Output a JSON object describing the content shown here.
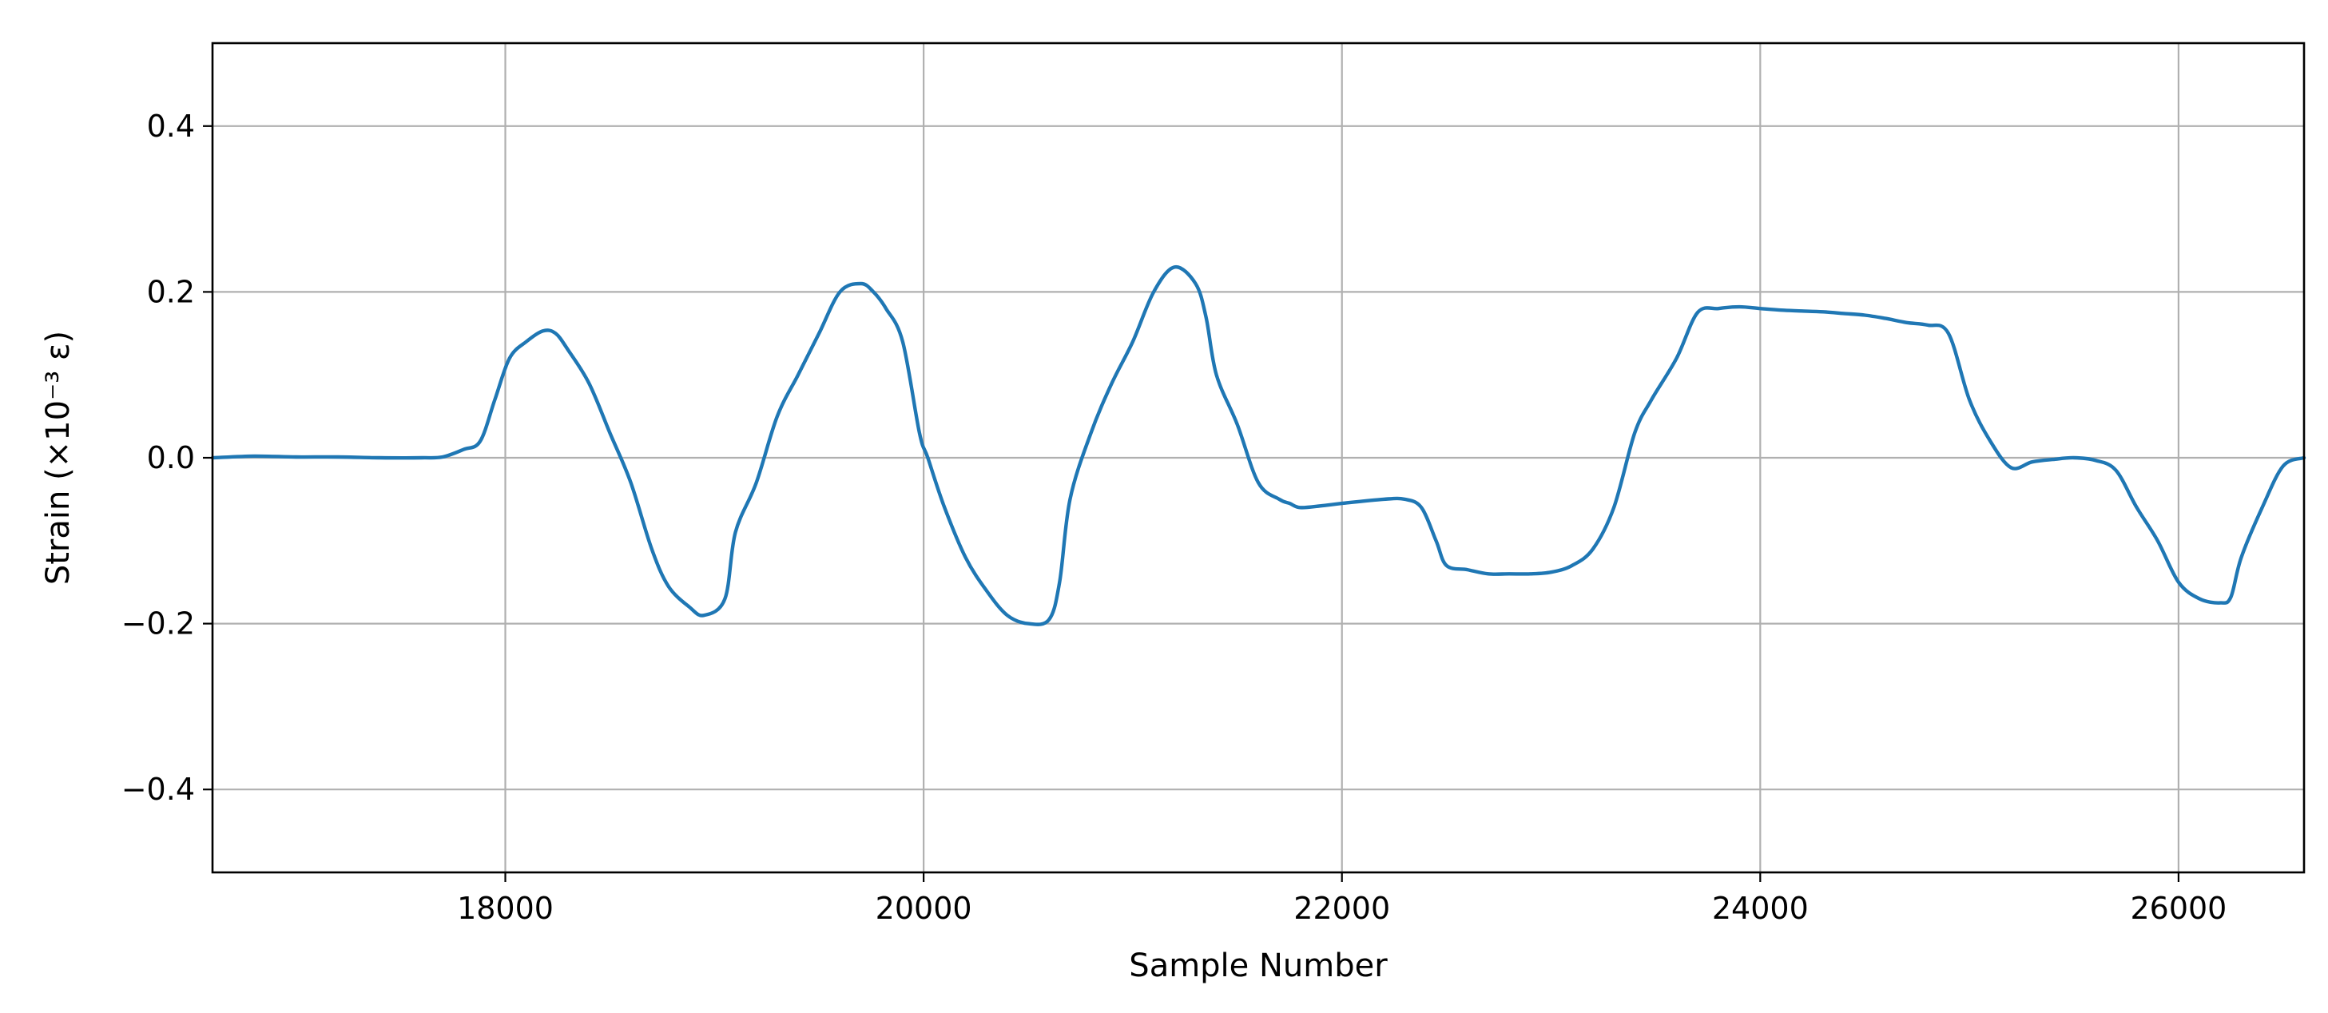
{
  "chart_data": {
    "type": "line",
    "title": "",
    "xlabel": "Sample Number",
    "ylabel": "Strain (×10⁻³ ε)",
    "xlim": [
      16600,
      26600
    ],
    "ylim": [
      -0.5,
      0.5
    ],
    "grid": true,
    "x_ticks": [
      18000,
      20000,
      22000,
      24000,
      26000
    ],
    "x_tick_labels": [
      "18000",
      "20000",
      "22000",
      "24000",
      "26000"
    ],
    "y_ticks": [
      -0.4,
      -0.2,
      0.0,
      0.2,
      0.4
    ],
    "y_tick_labels": [
      "−0.4",
      "−0.2",
      "0.0",
      "0.2",
      "0.4"
    ],
    "series": [
      {
        "color": "#1f77b4",
        "x": [
          16600,
          16800,
          17000,
          17200,
          17400,
          17600,
          17700,
          17800,
          17880,
          17950,
          18020,
          18100,
          18180,
          18240,
          18300,
          18400,
          18500,
          18600,
          18700,
          18780,
          18880,
          18950,
          19050,
          19100,
          19200,
          19300,
          19400,
          19500,
          19600,
          19700,
          19760,
          19820,
          19900,
          19980,
          20020,
          20100,
          20200,
          20300,
          20400,
          20500,
          20600,
          20650,
          20700,
          20800,
          20900,
          21000,
          21100,
          21200,
          21300,
          21350,
          21400,
          21500,
          21600,
          21700,
          21750,
          21800,
          21900,
          22000,
          22200,
          22300,
          22380,
          22450,
          22500,
          22600,
          22700,
          22800,
          22900,
          23000,
          23100,
          23200,
          23300,
          23400,
          23480,
          23600,
          23700,
          23800,
          23900,
          24000,
          24100,
          24200,
          24300,
          24400,
          24500,
          24600,
          24700,
          24800,
          24900,
          25000,
          25100,
          25200,
          25300,
          25400,
          25500,
          25600,
          25700,
          25800,
          25900,
          26000,
          26100,
          26200,
          26250,
          26300,
          26400,
          26500,
          26600
        ],
        "y": [
          0.0,
          0.002,
          0.001,
          0.001,
          0.0,
          0.0,
          0.001,
          0.01,
          0.02,
          0.07,
          0.12,
          0.14,
          0.153,
          0.15,
          0.13,
          0.09,
          0.03,
          -0.03,
          -0.11,
          -0.155,
          -0.18,
          -0.19,
          -0.17,
          -0.09,
          -0.03,
          0.05,
          0.1,
          0.15,
          0.2,
          0.21,
          0.2,
          0.18,
          0.14,
          0.03,
          0.0,
          -0.06,
          -0.12,
          -0.16,
          -0.19,
          -0.2,
          -0.195,
          -0.15,
          -0.05,
          0.03,
          0.09,
          0.14,
          0.2,
          0.23,
          0.21,
          0.17,
          0.1,
          0.04,
          -0.03,
          -0.05,
          -0.055,
          -0.06,
          -0.058,
          -0.055,
          -0.05,
          -0.05,
          -0.06,
          -0.1,
          -0.13,
          -0.135,
          -0.14,
          -0.14,
          -0.14,
          -0.138,
          -0.13,
          -0.11,
          -0.06,
          0.03,
          0.07,
          0.12,
          0.175,
          0.18,
          0.182,
          0.18,
          0.178,
          0.177,
          0.176,
          0.174,
          0.172,
          0.168,
          0.163,
          0.16,
          0.15,
          0.07,
          0.02,
          -0.012,
          -0.005,
          -0.002,
          0.0,
          -0.003,
          -0.015,
          -0.06,
          -0.1,
          -0.15,
          -0.17,
          -0.175,
          -0.168,
          -0.12,
          -0.06,
          -0.01,
          0.0
        ]
      }
    ]
  }
}
